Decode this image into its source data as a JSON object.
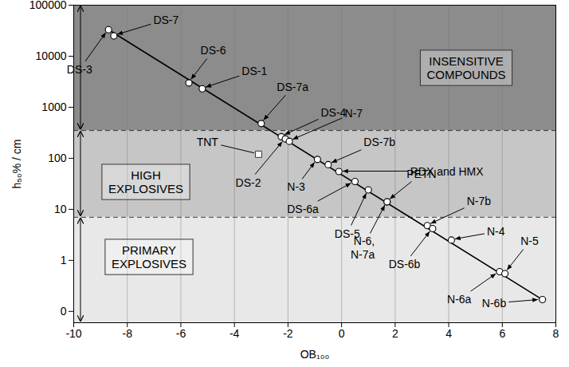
{
  "chart_data": {
    "type": "scatter",
    "x_label": "OB₁₀₀",
    "y_label": "h₅₀% / cm",
    "log": "y",
    "grid": "x",
    "xlim": [
      -10,
      8
    ],
    "xticks": [
      -10,
      -8,
      -6,
      -4,
      -2,
      0,
      2,
      4,
      6,
      8
    ],
    "ylim": [
      0.06,
      100000
    ],
    "yticks": [
      {
        "value": 0.1,
        "label": "0"
      },
      1,
      10,
      100,
      1000,
      10000,
      100000
    ],
    "points": {
      "labels": [
        "DS-3",
        "DS-7",
        "DS-6",
        "DS-1",
        "DS-7a",
        "DS-4",
        "DS-2",
        "N-7",
        "N-3",
        "DS-7b",
        "RDX and HMX",
        "DS-6a",
        "DS-5",
        "PETN",
        "N-6,\nN-7a",
        "N-7b",
        "DS-6b",
        "N-4",
        "N-6a",
        "N-5",
        "N-6b"
      ],
      "x": [
        -8.7,
        -8.5,
        -5.7,
        -5.2,
        -3.0,
        -2.25,
        -2.1,
        -1.95,
        -0.9,
        -0.5,
        -0.1,
        0.5,
        1.0,
        1.7,
        1.7,
        3.2,
        3.4,
        4.1,
        5.9,
        6.1,
        7.5
      ],
      "values": [
        33000,
        25000,
        3000,
        2300,
        480,
        265,
        240,
        215,
        95,
        75,
        55,
        35,
        24,
        14,
        14,
        4.8,
        4.2,
        2.5,
        0.6,
        0.55,
        0.17
      ],
      "marker": "circle",
      "color": "#ffffff"
    },
    "reference": {
      "labels": [
        "TNT"
      ],
      "x": [
        -3.1
      ],
      "values": [
        120
      ],
      "marker": "square",
      "color": "#ffffff"
    },
    "fit_line": {
      "x": [
        -8.7,
        7.5
      ],
      "values": [
        33000,
        0.17
      ],
      "line_style": "solid",
      "color": "#000000"
    },
    "bands": {
      "labels": [
        "INSENSITIVE\nCOMPOUNDS",
        "HIGH\nEXPLOSIVES",
        "PRIMARY\nEXPLOSIVES"
      ],
      "lower": [
        350,
        7,
        0.06
      ],
      "upper": [
        100000,
        350,
        7
      ],
      "colors": [
        "#8c8c8c",
        "#c6c6c6",
        "#e8e8e8"
      ],
      "line_style": "dashed"
    }
  }
}
